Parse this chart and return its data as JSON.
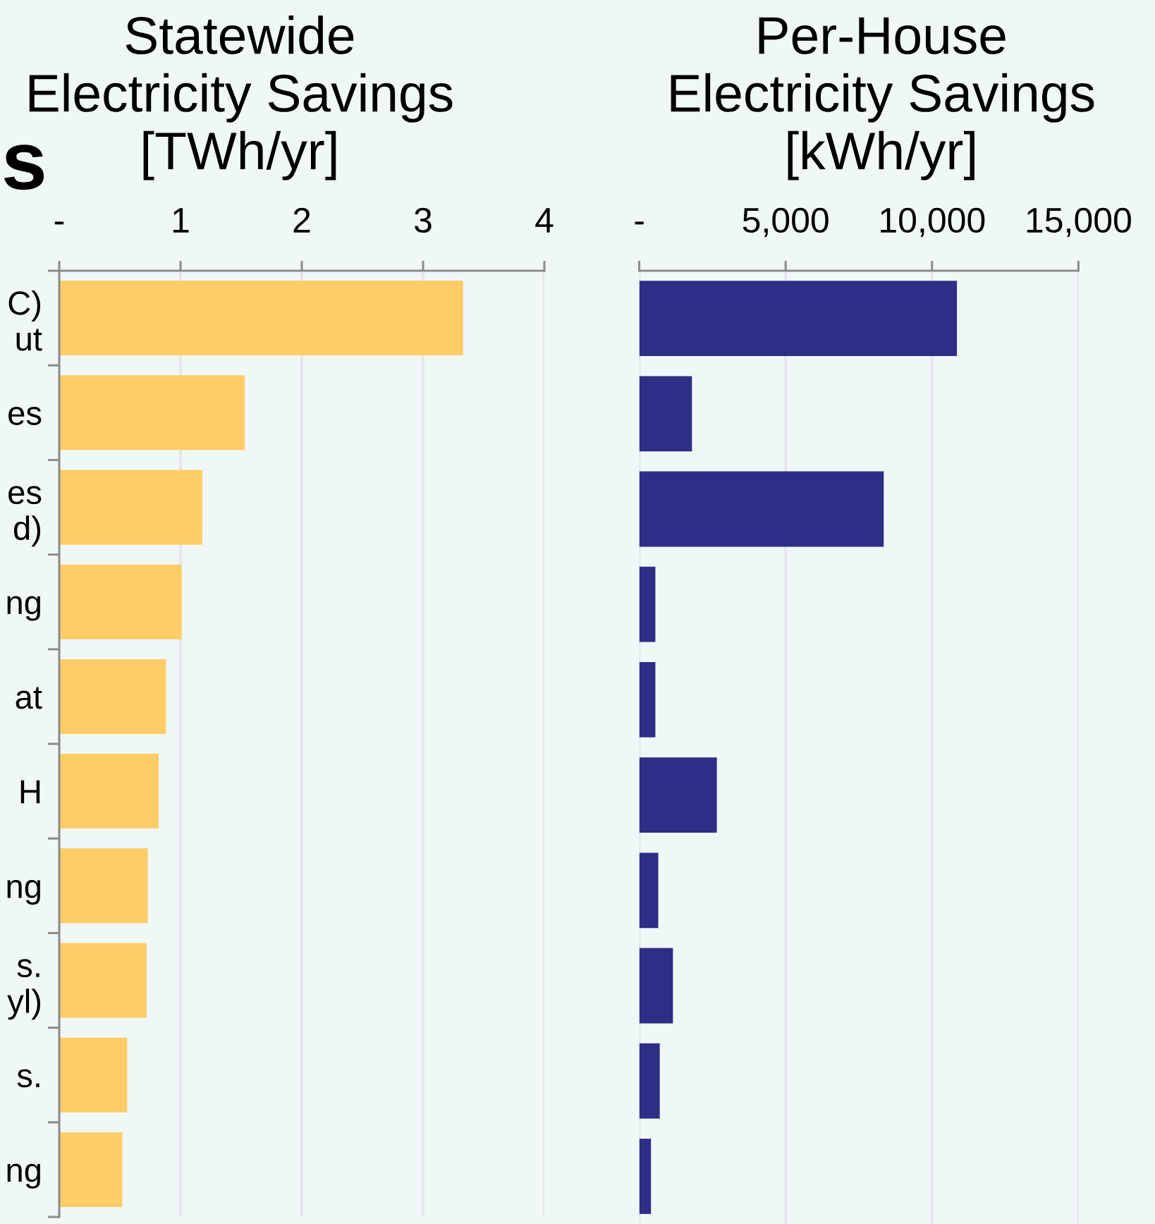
{
  "chart_data": [
    {
      "type": "bar",
      "orientation": "horizontal",
      "title": "Statewide\nElectricity Savings\n[TWh/yr]",
      "categories": [
        "C)\nut",
        "es",
        "es\nd)",
        "ng",
        "at",
        "H",
        "ng",
        "s.\nyl)",
        "s.",
        "ng"
      ],
      "values": [
        3.33,
        1.53,
        1.18,
        1.01,
        0.88,
        0.82,
        0.73,
        0.72,
        0.56,
        0.52
      ],
      "color": "#ffcc66",
      "xlim": [
        0,
        4
      ],
      "xticks": [
        {
          "value": 0,
          "label": "-"
        },
        1,
        2,
        3,
        4
      ],
      "grid": "x",
      "annotations": [
        "s"
      ]
    },
    {
      "type": "bar",
      "orientation": "horizontal",
      "title": "Per-House\nElectricity Savings\n[kWh/yr]",
      "categories": [
        null,
        null,
        null,
        null,
        null,
        null,
        null,
        null,
        null,
        null
      ],
      "values": [
        10850,
        1800,
        8350,
        550,
        550,
        2650,
        650,
        1150,
        700,
        400
      ],
      "color": "#2e2e87",
      "xlim": [
        0,
        15000
      ],
      "xticks": [
        {
          "value": 0,
          "label": "-"
        },
        {
          "value": 5000,
          "label": "5,000"
        },
        {
          "value": 10000,
          "label": "10,000"
        },
        {
          "value": 15000,
          "label": "15,000"
        }
      ],
      "grid": "x",
      "tick_labels": "x"
    }
  ]
}
